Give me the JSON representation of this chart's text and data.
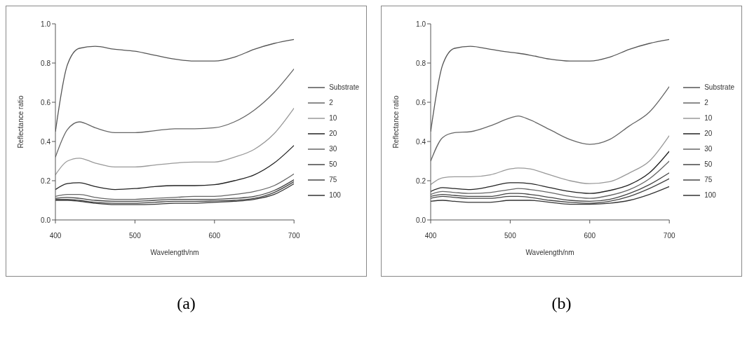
{
  "chart_data": [
    {
      "type": "line",
      "annotations": [
        "(a)"
      ],
      "xlabel": "Wavelength/nm",
      "ylabel": "Reflectance ratio",
      "xlim": [
        400,
        700
      ],
      "xticks": [
        400,
        500,
        600,
        700
      ],
      "ylim": [
        0,
        1
      ],
      "yticks": [
        {
          "value": 0,
          "label": "0.0"
        },
        {
          "value": 0.2,
          "label": "0.2"
        },
        {
          "value": 0.4,
          "label": "0.4"
        },
        {
          "value": 0.6,
          "label": "0.6"
        },
        {
          "value": 0.8,
          "label": "0.8"
        },
        {
          "value": 1,
          "label": "1.0"
        }
      ],
      "legend": "right",
      "grid": false,
      "marker": "none",
      "line_style": "solid",
      "x": [
        400,
        415,
        430,
        450,
        475,
        500,
        525,
        550,
        575,
        600,
        625,
        650,
        675,
        700
      ],
      "series": [
        {
          "name": "Substrate",
          "color": "#555555",
          "values": [
            0.45,
            0.79,
            0.875,
            0.885,
            0.87,
            0.86,
            0.84,
            0.82,
            0.81,
            0.81,
            0.83,
            0.87,
            0.9,
            0.92
          ]
        },
        {
          "name": "2",
          "color": "#666666",
          "values": [
            0.32,
            0.46,
            0.5,
            0.47,
            0.445,
            0.445,
            0.455,
            0.465,
            0.465,
            0.47,
            0.5,
            0.56,
            0.65,
            0.77
          ]
        },
        {
          "name": "10",
          "color": "#999999",
          "values": [
            0.23,
            0.3,
            0.315,
            0.29,
            0.27,
            0.27,
            0.28,
            0.29,
            0.295,
            0.295,
            0.32,
            0.36,
            0.44,
            0.57
          ]
        },
        {
          "name": "20",
          "color": "#222222",
          "values": [
            0.155,
            0.185,
            0.19,
            0.17,
            0.155,
            0.16,
            0.17,
            0.175,
            0.175,
            0.18,
            0.2,
            0.23,
            0.29,
            0.38
          ]
        },
        {
          "name": "30",
          "color": "#666666",
          "values": [
            0.12,
            0.13,
            0.13,
            0.115,
            0.105,
            0.105,
            0.11,
            0.115,
            0.12,
            0.12,
            0.13,
            0.145,
            0.175,
            0.235
          ]
        },
        {
          "name": "50",
          "color": "#444444",
          "values": [
            0.11,
            0.115,
            0.11,
            0.1,
            0.095,
            0.095,
            0.1,
            0.105,
            0.105,
            0.105,
            0.11,
            0.12,
            0.15,
            0.205
          ]
        },
        {
          "name": "75",
          "color": "#444444",
          "values": [
            0.105,
            0.105,
            0.1,
            0.09,
            0.085,
            0.085,
            0.09,
            0.095,
            0.095,
            0.097,
            0.1,
            0.11,
            0.14,
            0.195
          ]
        },
        {
          "name": "100",
          "color": "#333333",
          "values": [
            0.1,
            0.1,
            0.095,
            0.085,
            0.078,
            0.078,
            0.08,
            0.085,
            0.085,
            0.09,
            0.095,
            0.105,
            0.13,
            0.185
          ]
        }
      ]
    },
    {
      "type": "line",
      "annotations": [
        "(b)"
      ],
      "xlabel": "Wavelength/nm",
      "ylabel": "Reflectance ratio",
      "xlim": [
        400,
        700
      ],
      "xticks": [
        400,
        500,
        600,
        700
      ],
      "ylim": [
        0,
        1
      ],
      "yticks": [
        {
          "value": 0,
          "label": "0.0"
        },
        {
          "value": 0.2,
          "label": "0.2"
        },
        {
          "value": 0.4,
          "label": "0.4"
        },
        {
          "value": 0.6,
          "label": "0.6"
        },
        {
          "value": 0.8,
          "label": "0.8"
        },
        {
          "value": 1,
          "label": "1.0"
        }
      ],
      "legend": "right",
      "grid": false,
      "marker": "none",
      "line_style": "solid",
      "x": [
        400,
        415,
        430,
        450,
        475,
        500,
        510,
        525,
        550,
        575,
        600,
        625,
        650,
        675,
        700
      ],
      "series": [
        {
          "name": "Substrate",
          "color": "#555555",
          "values": [
            0.45,
            0.79,
            0.875,
            0.885,
            0.87,
            0.855,
            0.85,
            0.84,
            0.82,
            0.81,
            0.81,
            0.83,
            0.87,
            0.9,
            0.92
          ]
        },
        {
          "name": "2",
          "color": "#666666",
          "values": [
            0.3,
            0.42,
            0.445,
            0.45,
            0.48,
            0.52,
            0.53,
            0.51,
            0.46,
            0.41,
            0.385,
            0.41,
            0.48,
            0.55,
            0.68
          ]
        },
        {
          "name": "10",
          "color": "#999999",
          "values": [
            0.18,
            0.215,
            0.22,
            0.22,
            0.23,
            0.26,
            0.265,
            0.26,
            0.23,
            0.2,
            0.185,
            0.195,
            0.24,
            0.3,
            0.43
          ]
        },
        {
          "name": "20",
          "color": "#222222",
          "values": [
            0.145,
            0.165,
            0.16,
            0.155,
            0.17,
            0.19,
            0.19,
            0.185,
            0.165,
            0.145,
            0.135,
            0.15,
            0.18,
            0.24,
            0.35
          ]
        },
        {
          "name": "30",
          "color": "#666666",
          "values": [
            0.13,
            0.145,
            0.14,
            0.135,
            0.14,
            0.155,
            0.16,
            0.155,
            0.14,
            0.12,
            0.11,
            0.125,
            0.155,
            0.21,
            0.3
          ]
        },
        {
          "name": "50",
          "color": "#444444",
          "values": [
            0.12,
            0.13,
            0.125,
            0.12,
            0.12,
            0.135,
            0.135,
            0.13,
            0.115,
            0.1,
            0.095,
            0.105,
            0.135,
            0.18,
            0.24
          ]
        },
        {
          "name": "75",
          "color": "#444444",
          "values": [
            0.11,
            0.12,
            0.115,
            0.11,
            0.11,
            0.12,
            0.12,
            0.115,
            0.1,
            0.09,
            0.085,
            0.095,
            0.12,
            0.16,
            0.21
          ]
        },
        {
          "name": "100",
          "color": "#333333",
          "values": [
            0.095,
            0.1,
            0.095,
            0.09,
            0.09,
            0.1,
            0.1,
            0.1,
            0.09,
            0.08,
            0.08,
            0.085,
            0.1,
            0.13,
            0.17
          ]
        }
      ]
    }
  ]
}
